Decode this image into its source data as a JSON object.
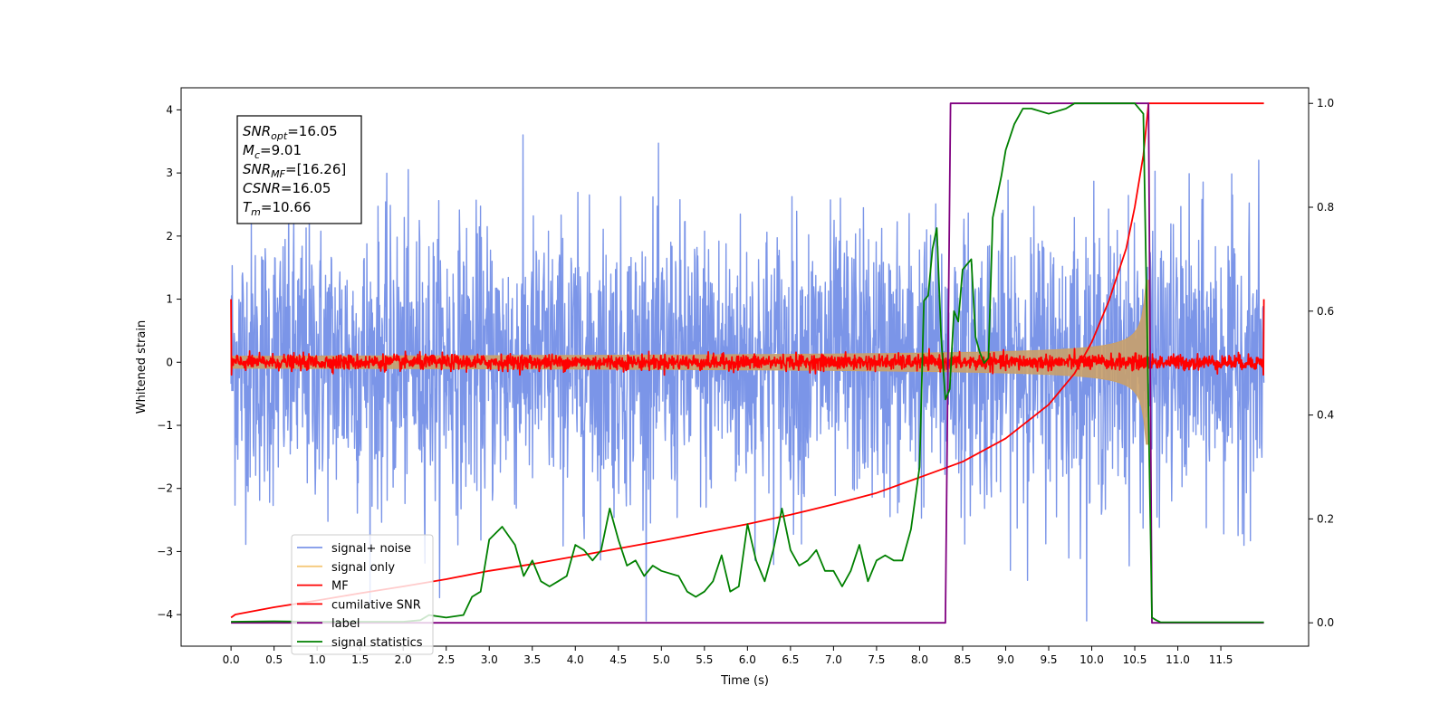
{
  "chart_data": {
    "type": "line",
    "xlabel": "Time (s)",
    "ylabel": "Whitened strain",
    "xlim": [
      -0.58,
      12.52
    ],
    "ylim": [
      -4.5,
      4.35
    ],
    "y2lim": [
      -0.045,
      1.03
    ],
    "xticks": [
      "0.0",
      "0.5",
      "1.0",
      "1.5",
      "2.0",
      "2.5",
      "3.0",
      "3.5",
      "4.0",
      "4.5",
      "5.0",
      "5.5",
      "6.0",
      "6.5",
      "7.0",
      "7.5",
      "8.0",
      "8.5",
      "9.0",
      "9.5",
      "10.0",
      "10.5",
      "11.0",
      "11.5"
    ],
    "yticks": [
      "−4",
      "−3",
      "−2",
      "−1",
      "0",
      "1",
      "2",
      "3",
      "4"
    ],
    "y2ticks": [
      "0.0",
      "0.2",
      "0.4",
      "0.6",
      "0.8",
      "1.0"
    ],
    "info_box": [
      {
        "main": "SNR",
        "sub": "opt",
        "value": "=16.05"
      },
      {
        "main": "M",
        "sub": "c",
        "value": "=9.01"
      },
      {
        "main": "SNR",
        "sub": "MF",
        "value": "=[16.26]"
      },
      {
        "main": "CSNR",
        "sub": "",
        "value": "=16.05"
      },
      {
        "main": "T",
        "sub": "m",
        "value": "=10.66"
      }
    ],
    "legend": {
      "position": "lower-left",
      "entries": [
        {
          "label": "signal+ noise",
          "color": "#7b95e8"
        },
        {
          "label": "signal only",
          "color": "#f5c97a"
        },
        {
          "label": "MF",
          "color": "#ff0000"
        },
        {
          "label": "cumilative SNR",
          "color": "#ff0000"
        },
        {
          "label": "label",
          "color": "#800080"
        },
        {
          "label": "signal statistics",
          "color": "#008000"
        }
      ]
    },
    "series": [
      {
        "name": "signal+ noise",
        "axis": "left",
        "kind": "noise",
        "x_range": [
          0,
          12.0
        ],
        "sigma": 1.1,
        "color": "#7b95e8"
      },
      {
        "name": "signal only",
        "axis": "left",
        "kind": "chirp",
        "x_range": [
          0,
          10.66
        ],
        "merger_time": 10.66,
        "peak_amplitude": 1.3,
        "color": "#c9a06a"
      },
      {
        "name": "MF",
        "axis": "left",
        "kind": "noise-small",
        "x_range": [
          0,
          12.0
        ],
        "sigma": 0.06,
        "color": "#ff0000"
      },
      {
        "name": "cumilative SNR",
        "axis": "right",
        "x": [
          0,
          0.05,
          0.5,
          1.0,
          1.5,
          2.0,
          2.5,
          3.0,
          3.5,
          4.0,
          4.5,
          5.0,
          5.5,
          6.0,
          6.5,
          7.0,
          7.5,
          8.0,
          8.5,
          9.0,
          9.5,
          9.8,
          10.0,
          10.2,
          10.4,
          10.5,
          10.6,
          10.66,
          11.0,
          11.5,
          12.0
        ],
        "y": [
          0.01,
          0.016,
          0.03,
          0.043,
          0.057,
          0.07,
          0.084,
          0.1,
          0.113,
          0.128,
          0.143,
          0.158,
          0.174,
          0.19,
          0.208,
          0.228,
          0.25,
          0.28,
          0.31,
          0.355,
          0.42,
          0.48,
          0.54,
          0.62,
          0.72,
          0.8,
          0.9,
          1.0,
          1.0,
          1.0,
          1.0
        ],
        "color": "#ff0000"
      },
      {
        "name": "label",
        "axis": "right",
        "x": [
          0,
          8.3,
          8.36,
          10.66,
          10.7,
          12.0
        ],
        "y": [
          0,
          0,
          1,
          1,
          0,
          0
        ],
        "color": "#800080"
      },
      {
        "name": "signal statistics",
        "axis": "right",
        "x": [
          0,
          0.5,
          1.0,
          1.5,
          2.0,
          2.2,
          2.3,
          2.5,
          2.7,
          2.8,
          2.9,
          3.0,
          3.15,
          3.3,
          3.4,
          3.5,
          3.6,
          3.7,
          3.8,
          3.9,
          4.0,
          4.1,
          4.2,
          4.3,
          4.4,
          4.5,
          4.6,
          4.7,
          4.8,
          4.9,
          5.0,
          5.2,
          5.3,
          5.4,
          5.5,
          5.6,
          5.7,
          5.8,
          5.9,
          6.0,
          6.1,
          6.2,
          6.3,
          6.4,
          6.5,
          6.6,
          6.7,
          6.8,
          6.9,
          7.0,
          7.1,
          7.2,
          7.3,
          7.4,
          7.5,
          7.6,
          7.7,
          7.8,
          7.9,
          8.0,
          8.05,
          8.1,
          8.15,
          8.2,
          8.25,
          8.3,
          8.35,
          8.4,
          8.45,
          8.5,
          8.6,
          8.65,
          8.7,
          8.75,
          8.8,
          8.85,
          8.9,
          8.95,
          9.0,
          9.1,
          9.2,
          9.3,
          9.5,
          9.7,
          9.8,
          10.0,
          10.3,
          10.5,
          10.6,
          10.65,
          10.7,
          10.75,
          10.8,
          11.0,
          11.5,
          12.0
        ],
        "y": [
          0.002,
          0.003,
          0.002,
          0.002,
          0.002,
          0.005,
          0.015,
          0.01,
          0.015,
          0.05,
          0.06,
          0.16,
          0.185,
          0.15,
          0.09,
          0.12,
          0.08,
          0.07,
          0.08,
          0.09,
          0.15,
          0.14,
          0.12,
          0.14,
          0.22,
          0.16,
          0.11,
          0.12,
          0.09,
          0.11,
          0.1,
          0.09,
          0.06,
          0.05,
          0.06,
          0.08,
          0.13,
          0.06,
          0.07,
          0.19,
          0.12,
          0.08,
          0.14,
          0.22,
          0.14,
          0.11,
          0.12,
          0.14,
          0.1,
          0.1,
          0.07,
          0.1,
          0.15,
          0.08,
          0.12,
          0.13,
          0.12,
          0.12,
          0.18,
          0.3,
          0.62,
          0.63,
          0.72,
          0.76,
          0.55,
          0.43,
          0.45,
          0.6,
          0.58,
          0.68,
          0.7,
          0.55,
          0.52,
          0.5,
          0.51,
          0.78,
          0.82,
          0.86,
          0.91,
          0.96,
          0.99,
          0.99,
          0.98,
          0.99,
          1.0,
          1.0,
          1.0,
          1.0,
          0.98,
          0.5,
          0.01,
          0.005,
          0.001,
          0.001,
          0.001,
          0.001
        ],
        "color": "#008000"
      }
    ]
  }
}
